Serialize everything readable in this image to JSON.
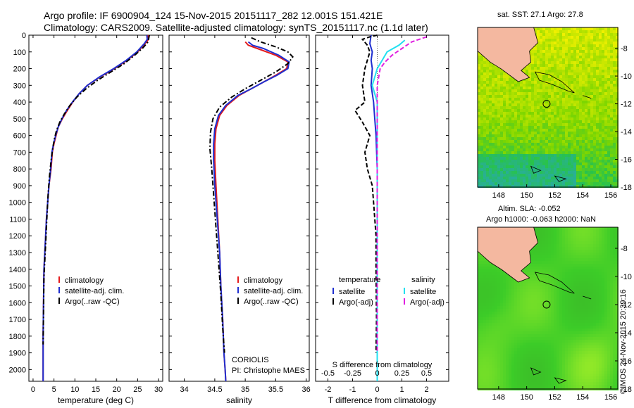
{
  "header": {
    "line1": "Argo profile: IF 6900904_124 15-Nov-2015 20151117_282 12.001S 151.421E",
    "line2": "Climatology: CARS2009. Satellite-adjusted climatology: synTS_20151117.nc (1.1d later)"
  },
  "side_label": "©IMOS 24-Nov-2015 20:39:16",
  "panels": {
    "temperature": {
      "xlabel": "temperature (deg C)",
      "legend": [
        "climatology",
        "satellite-adj. clim.",
        "Argo(..raw -QC)"
      ]
    },
    "salinity": {
      "xlabel": "salinity",
      "legend": [
        "climatology",
        "satellite-adj. clim.",
        "Argo(..raw -QC)"
      ],
      "note1": "CORIOLIS",
      "note2": "PI: Christophe MAES"
    },
    "difference": {
      "xlabel": "T difference from climatology",
      "toplabel": "S difference from climatology",
      "legend_head_t": "temperature",
      "legend_head_s": "salinity",
      "legend_t": [
        "satellite",
        "Argo(-adj)"
      ],
      "legend_s": [
        "satellite",
        "Argo(-adj)"
      ]
    },
    "map_sst": {
      "title": "sat. SST: 27.1 Argo: 27.8"
    },
    "map_sla": {
      "title1": "Altim. SLA: -0.052",
      "title2": "Argo h1000: -0.063 h2000: NaN"
    }
  },
  "colors": {
    "climatology": "#e41a1c",
    "satellite": "#1f2fd0",
    "argo": "#000000",
    "sal_satellite": "#22e0f0",
    "sal_argo": "#e020e0",
    "land": "#f4b8a0"
  },
  "chart_data": [
    {
      "type": "line",
      "name": "temperature profile",
      "xlabel": "temperature (deg C)",
      "ylabel": "",
      "xlim": [
        -1,
        31
      ],
      "ylim": [
        2070,
        0
      ],
      "y_inverted": true,
      "xticks": [
        0,
        5,
        10,
        15,
        20,
        25,
        30
      ],
      "yticks": [
        0,
        100,
        200,
        300,
        400,
        500,
        600,
        700,
        800,
        900,
        1000,
        1100,
        1200,
        1300,
        1400,
        1500,
        1600,
        1700,
        1800,
        1900,
        2000
      ],
      "series": [
        {
          "name": "climatology",
          "color": "#e41a1c",
          "style": "solid",
          "x": [
            27.5,
            27.6,
            26.8,
            25.0,
            22.5,
            19.5,
            16.0,
            13.0,
            11.0,
            9.5,
            8.2,
            7.0,
            6.0,
            5.5,
            5.0,
            4.6,
            4.3,
            3.8,
            3.5,
            3.2,
            3.0,
            2.8,
            2.6,
            2.5,
            2.4,
            2.4,
            2.4
          ],
          "y": [
            0,
            25,
            50,
            100,
            150,
            200,
            250,
            300,
            350,
            400,
            450,
            500,
            550,
            600,
            650,
            700,
            800,
            900,
            1000,
            1100,
            1200,
            1300,
            1400,
            1600,
            1800,
            2000,
            2070
          ]
        },
        {
          "name": "satellite-adj. clim.",
          "color": "#1f2fd0",
          "style": "solid",
          "x": [
            27.2,
            27.3,
            26.6,
            24.8,
            22.3,
            19.3,
            15.9,
            13.0,
            11.0,
            9.4,
            8.0,
            6.9,
            6.0,
            5.4,
            4.9,
            4.5,
            4.2,
            3.8,
            3.5,
            3.2,
            3.0,
            2.8,
            2.6,
            2.5,
            2.4,
            2.4,
            2.4
          ],
          "y": [
            0,
            25,
            50,
            100,
            150,
            200,
            250,
            300,
            350,
            400,
            450,
            500,
            550,
            600,
            650,
            700,
            800,
            900,
            1000,
            1100,
            1200,
            1300,
            1400,
            1600,
            1800,
            2000,
            2070
          ]
        },
        {
          "name": "Argo(..raw -QC)",
          "color": "#000000",
          "style": "dashdot",
          "x": [
            27.8,
            27.5,
            26.3,
            24.3,
            21.8,
            18.6,
            15.4,
            12.7,
            10.5,
            8.8,
            7.5,
            6.4,
            5.6,
            5.1,
            4.7,
            4.3,
            3.9,
            3.6,
            3.4,
            3.2,
            3.0,
            2.8,
            2.6,
            2.5,
            2.4
          ],
          "y": [
            0,
            40,
            75,
            120,
            170,
            220,
            270,
            320,
            370,
            420,
            470,
            520,
            570,
            620,
            680,
            750,
            850,
            950,
            1050,
            1150,
            1250,
            1350,
            1450,
            1650,
            1850
          ]
        }
      ]
    },
    {
      "type": "line",
      "name": "salinity profile",
      "xlabel": "salinity",
      "xlim": [
        33.75,
        36.05
      ],
      "ylim": [
        2070,
        0
      ],
      "y_inverted": true,
      "xticks": [
        34,
        34.5,
        35,
        35.5,
        36
      ],
      "series": [
        {
          "name": "climatology",
          "color": "#e41a1c",
          "style": "solid",
          "x": [
            35.0,
            35.05,
            35.2,
            35.5,
            35.7,
            35.68,
            35.5,
            35.3,
            35.1,
            34.9,
            34.7,
            34.58,
            34.52,
            34.5,
            34.5,
            34.52,
            34.55,
            34.58,
            34.6,
            34.63,
            34.65,
            34.67,
            34.68
          ],
          "y": [
            40,
            60,
            80,
            120,
            160,
            200,
            240,
            280,
            320,
            360,
            420,
            480,
            560,
            650,
            750,
            900,
            1100,
            1300,
            1500,
            1700,
            1900,
            2000,
            2070
          ]
        },
        {
          "name": "satellite-adj. clim.",
          "color": "#1f2fd0",
          "style": "solid",
          "x": [
            35.05,
            35.12,
            35.3,
            35.55,
            35.72,
            35.7,
            35.52,
            35.3,
            35.1,
            34.88,
            34.68,
            34.56,
            34.5,
            34.48,
            34.48,
            34.5,
            34.54,
            34.58,
            34.6,
            34.63,
            34.65,
            34.67,
            34.68
          ],
          "y": [
            40,
            60,
            80,
            120,
            160,
            200,
            240,
            280,
            320,
            360,
            420,
            480,
            560,
            650,
            750,
            900,
            1100,
            1300,
            1500,
            1700,
            1900,
            2000,
            2070
          ]
        },
        {
          "name": "Argo(..raw -QC)",
          "color": "#000000",
          "style": "dashdot",
          "x": [
            35.1,
            35.25,
            35.5,
            35.7,
            35.78,
            35.7,
            35.5,
            35.25,
            35.0,
            34.78,
            34.58,
            34.47,
            34.43,
            34.42,
            34.45,
            34.48,
            34.52,
            34.56,
            34.6,
            34.63,
            34.66
          ],
          "y": [
            15,
            40,
            70,
            100,
            130,
            170,
            220,
            270,
            320,
            370,
            430,
            500,
            580,
            680,
            800,
            950,
            1150,
            1350,
            1550,
            1750,
            1900
          ]
        }
      ]
    },
    {
      "type": "line",
      "name": "difference from climatology",
      "xlabel": "T difference from climatology",
      "xlim": [
        -2.5,
        2.9
      ],
      "ylim": [
        2070,
        0
      ],
      "y_inverted": true,
      "xticks": [
        -2,
        -1,
        0,
        1,
        2
      ],
      "top_xlabel": "S difference from climatology",
      "top_xticks": [
        -0.5,
        -0.25,
        0,
        0.25,
        0.5
      ],
      "series": [
        {
          "name": "temperature satellite",
          "color": "#1f2fd0",
          "style": "solid",
          "x": [
            -0.25,
            -0.3,
            -0.2,
            -0.25,
            -0.2,
            -0.25,
            -0.15,
            -0.1,
            -0.05,
            0.0,
            0.0,
            0.0,
            0.0,
            0.0,
            0.0
          ],
          "y": [
            0,
            50,
            100,
            150,
            200,
            300,
            400,
            500,
            600,
            800,
            1000,
            1200,
            1400,
            1800,
            2070
          ]
        },
        {
          "name": "temperature Argo(-adj)",
          "color": "#000000",
          "style": "dashed",
          "x": [
            0.0,
            -0.3,
            -0.6,
            -0.4,
            -0.3,
            -0.5,
            -0.6,
            -0.5,
            -0.9,
            -0.6,
            -0.3,
            -0.5,
            -0.4,
            -0.2,
            -0.15,
            -0.05,
            -0.05,
            -0.03,
            -0.05
          ],
          "y": [
            0,
            10,
            25,
            60,
            100,
            200,
            300,
            400,
            450,
            520,
            600,
            700,
            800,
            900,
            1000,
            1200,
            1400,
            1700,
            1900
          ]
        },
        {
          "name": "salinity satellite",
          "color": "#22e0f0",
          "style": "solid",
          "x": [
            0.28,
            0.22,
            0.1,
            0.05,
            0.0,
            -0.05,
            0.0,
            0.0,
            0.0,
            0.0,
            0.0,
            0.0,
            0.0
          ],
          "y": [
            30,
            60,
            100,
            150,
            200,
            300,
            400,
            600,
            800,
            1000,
            1400,
            1800,
            2070
          ],
          "axis": "salinity"
        },
        {
          "name": "salinity Argo(-adj)",
          "color": "#e020e0",
          "style": "dashed",
          "x": [
            0.5,
            0.35,
            0.25,
            0.15,
            0.08,
            0.03,
            0.0,
            0.0,
            0.0,
            0.0,
            0.0,
            0.0
          ],
          "y": [
            10,
            40,
            80,
            120,
            160,
            200,
            300,
            500,
            700,
            1000,
            1500,
            1900
          ],
          "axis": "salinity"
        }
      ]
    },
    {
      "type": "heatmap",
      "name": "satellite SST map",
      "xlim": [
        146.5,
        156.5
      ],
      "ylim": [
        -18,
        -6.5
      ],
      "xticks": [
        148,
        150,
        152,
        154,
        156
      ],
      "yticks": [
        -8,
        -10,
        -12,
        -14,
        -16,
        -18
      ],
      "marker": {
        "lon": 151.421,
        "lat": -12.001
      }
    },
    {
      "type": "heatmap",
      "name": "altimeter SLA map",
      "xlim": [
        146.5,
        156.5
      ],
      "ylim": [
        -18,
        -6.5
      ],
      "xticks": [
        148,
        150,
        152,
        154,
        156
      ],
      "yticks": [
        -8,
        -10,
        -12,
        -14,
        -16,
        -18
      ],
      "marker": {
        "lon": 151.421,
        "lat": -12.001
      }
    }
  ]
}
